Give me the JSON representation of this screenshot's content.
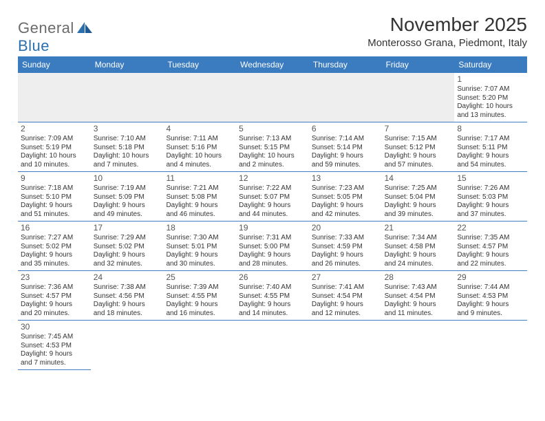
{
  "logo": {
    "general": "General",
    "blue": "Blue"
  },
  "title": "November 2025",
  "location": "Monterosso Grana, Piedmont, Italy",
  "weekdays": [
    "Sunday",
    "Monday",
    "Tuesday",
    "Wednesday",
    "Thursday",
    "Friday",
    "Saturday"
  ],
  "colors": {
    "header_bar": "#3b7bbf",
    "row_border": "#3b7bbf",
    "blank_bg": "#eeeeee",
    "text": "#333333",
    "logo_gray": "#6b6b6b",
    "logo_blue": "#2a6fb0"
  },
  "weeks": [
    [
      null,
      null,
      null,
      null,
      null,
      null,
      {
        "day": "1",
        "sunrise": "Sunrise: 7:07 AM",
        "sunset": "Sunset: 5:20 PM",
        "daylight1": "Daylight: 10 hours",
        "daylight2": "and 13 minutes."
      }
    ],
    [
      {
        "day": "2",
        "sunrise": "Sunrise: 7:09 AM",
        "sunset": "Sunset: 5:19 PM",
        "daylight1": "Daylight: 10 hours",
        "daylight2": "and 10 minutes."
      },
      {
        "day": "3",
        "sunrise": "Sunrise: 7:10 AM",
        "sunset": "Sunset: 5:18 PM",
        "daylight1": "Daylight: 10 hours",
        "daylight2": "and 7 minutes."
      },
      {
        "day": "4",
        "sunrise": "Sunrise: 7:11 AM",
        "sunset": "Sunset: 5:16 PM",
        "daylight1": "Daylight: 10 hours",
        "daylight2": "and 4 minutes."
      },
      {
        "day": "5",
        "sunrise": "Sunrise: 7:13 AM",
        "sunset": "Sunset: 5:15 PM",
        "daylight1": "Daylight: 10 hours",
        "daylight2": "and 2 minutes."
      },
      {
        "day": "6",
        "sunrise": "Sunrise: 7:14 AM",
        "sunset": "Sunset: 5:14 PM",
        "daylight1": "Daylight: 9 hours",
        "daylight2": "and 59 minutes."
      },
      {
        "day": "7",
        "sunrise": "Sunrise: 7:15 AM",
        "sunset": "Sunset: 5:12 PM",
        "daylight1": "Daylight: 9 hours",
        "daylight2": "and 57 minutes."
      },
      {
        "day": "8",
        "sunrise": "Sunrise: 7:17 AM",
        "sunset": "Sunset: 5:11 PM",
        "daylight1": "Daylight: 9 hours",
        "daylight2": "and 54 minutes."
      }
    ],
    [
      {
        "day": "9",
        "sunrise": "Sunrise: 7:18 AM",
        "sunset": "Sunset: 5:10 PM",
        "daylight1": "Daylight: 9 hours",
        "daylight2": "and 51 minutes."
      },
      {
        "day": "10",
        "sunrise": "Sunrise: 7:19 AM",
        "sunset": "Sunset: 5:09 PM",
        "daylight1": "Daylight: 9 hours",
        "daylight2": "and 49 minutes."
      },
      {
        "day": "11",
        "sunrise": "Sunrise: 7:21 AM",
        "sunset": "Sunset: 5:08 PM",
        "daylight1": "Daylight: 9 hours",
        "daylight2": "and 46 minutes."
      },
      {
        "day": "12",
        "sunrise": "Sunrise: 7:22 AM",
        "sunset": "Sunset: 5:07 PM",
        "daylight1": "Daylight: 9 hours",
        "daylight2": "and 44 minutes."
      },
      {
        "day": "13",
        "sunrise": "Sunrise: 7:23 AM",
        "sunset": "Sunset: 5:05 PM",
        "daylight1": "Daylight: 9 hours",
        "daylight2": "and 42 minutes."
      },
      {
        "day": "14",
        "sunrise": "Sunrise: 7:25 AM",
        "sunset": "Sunset: 5:04 PM",
        "daylight1": "Daylight: 9 hours",
        "daylight2": "and 39 minutes."
      },
      {
        "day": "15",
        "sunrise": "Sunrise: 7:26 AM",
        "sunset": "Sunset: 5:03 PM",
        "daylight1": "Daylight: 9 hours",
        "daylight2": "and 37 minutes."
      }
    ],
    [
      {
        "day": "16",
        "sunrise": "Sunrise: 7:27 AM",
        "sunset": "Sunset: 5:02 PM",
        "daylight1": "Daylight: 9 hours",
        "daylight2": "and 35 minutes."
      },
      {
        "day": "17",
        "sunrise": "Sunrise: 7:29 AM",
        "sunset": "Sunset: 5:02 PM",
        "daylight1": "Daylight: 9 hours",
        "daylight2": "and 32 minutes."
      },
      {
        "day": "18",
        "sunrise": "Sunrise: 7:30 AM",
        "sunset": "Sunset: 5:01 PM",
        "daylight1": "Daylight: 9 hours",
        "daylight2": "and 30 minutes."
      },
      {
        "day": "19",
        "sunrise": "Sunrise: 7:31 AM",
        "sunset": "Sunset: 5:00 PM",
        "daylight1": "Daylight: 9 hours",
        "daylight2": "and 28 minutes."
      },
      {
        "day": "20",
        "sunrise": "Sunrise: 7:33 AM",
        "sunset": "Sunset: 4:59 PM",
        "daylight1": "Daylight: 9 hours",
        "daylight2": "and 26 minutes."
      },
      {
        "day": "21",
        "sunrise": "Sunrise: 7:34 AM",
        "sunset": "Sunset: 4:58 PM",
        "daylight1": "Daylight: 9 hours",
        "daylight2": "and 24 minutes."
      },
      {
        "day": "22",
        "sunrise": "Sunrise: 7:35 AM",
        "sunset": "Sunset: 4:57 PM",
        "daylight1": "Daylight: 9 hours",
        "daylight2": "and 22 minutes."
      }
    ],
    [
      {
        "day": "23",
        "sunrise": "Sunrise: 7:36 AM",
        "sunset": "Sunset: 4:57 PM",
        "daylight1": "Daylight: 9 hours",
        "daylight2": "and 20 minutes."
      },
      {
        "day": "24",
        "sunrise": "Sunrise: 7:38 AM",
        "sunset": "Sunset: 4:56 PM",
        "daylight1": "Daylight: 9 hours",
        "daylight2": "and 18 minutes."
      },
      {
        "day": "25",
        "sunrise": "Sunrise: 7:39 AM",
        "sunset": "Sunset: 4:55 PM",
        "daylight1": "Daylight: 9 hours",
        "daylight2": "and 16 minutes."
      },
      {
        "day": "26",
        "sunrise": "Sunrise: 7:40 AM",
        "sunset": "Sunset: 4:55 PM",
        "daylight1": "Daylight: 9 hours",
        "daylight2": "and 14 minutes."
      },
      {
        "day": "27",
        "sunrise": "Sunrise: 7:41 AM",
        "sunset": "Sunset: 4:54 PM",
        "daylight1": "Daylight: 9 hours",
        "daylight2": "and 12 minutes."
      },
      {
        "day": "28",
        "sunrise": "Sunrise: 7:43 AM",
        "sunset": "Sunset: 4:54 PM",
        "daylight1": "Daylight: 9 hours",
        "daylight2": "and 11 minutes."
      },
      {
        "day": "29",
        "sunrise": "Sunrise: 7:44 AM",
        "sunset": "Sunset: 4:53 PM",
        "daylight1": "Daylight: 9 hours",
        "daylight2": "and 9 minutes."
      }
    ],
    [
      {
        "day": "30",
        "sunrise": "Sunrise: 7:45 AM",
        "sunset": "Sunset: 4:53 PM",
        "daylight1": "Daylight: 9 hours",
        "daylight2": "and 7 minutes."
      },
      null,
      null,
      null,
      null,
      null,
      null
    ]
  ]
}
